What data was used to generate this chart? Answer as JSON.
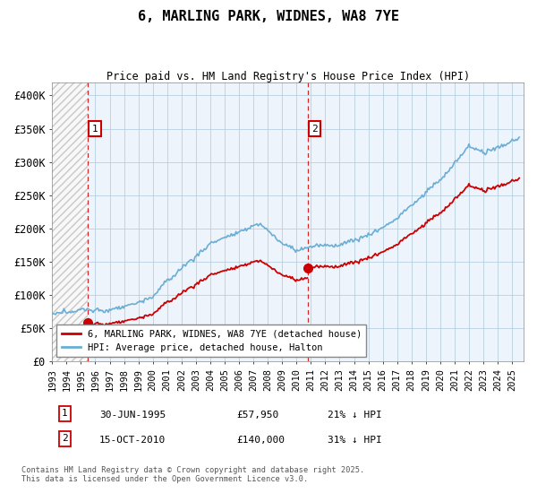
{
  "title": "6, MARLING PARK, WIDNES, WA8 7YE",
  "subtitle": "Price paid vs. HM Land Registry's House Price Index (HPI)",
  "ylim": [
    0,
    420000
  ],
  "yticks": [
    0,
    50000,
    100000,
    150000,
    200000,
    250000,
    300000,
    350000,
    400000
  ],
  "ytick_labels": [
    "£0",
    "£50K",
    "£100K",
    "£150K",
    "£200K",
    "£250K",
    "£300K",
    "£350K",
    "£400K"
  ],
  "hpi_color": "#6aaed6",
  "price_color": "#cc0000",
  "sale1_year": 1995.5,
  "sale1_price": 57950,
  "sale2_year": 2010.79,
  "sale2_price": 140000,
  "legend_line1": "6, MARLING PARK, WIDNES, WA8 7YE (detached house)",
  "legend_line2": "HPI: Average price, detached house, Halton",
  "annotation1_date": "30-JUN-1995",
  "annotation1_price": "£57,950",
  "annotation1_hpi": "21% ↓ HPI",
  "annotation2_date": "15-OCT-2010",
  "annotation2_price": "£140,000",
  "annotation2_hpi": "31% ↓ HPI",
  "footer": "Contains HM Land Registry data © Crown copyright and database right 2025.\nThis data is licensed under the Open Government Licence v3.0.",
  "xlim_left": 1993.0,
  "xlim_right": 2025.8,
  "background_color": "#ffffff",
  "plot_bg_color": "#eef4fb",
  "hatch_bg_color": "#f0f0f0"
}
